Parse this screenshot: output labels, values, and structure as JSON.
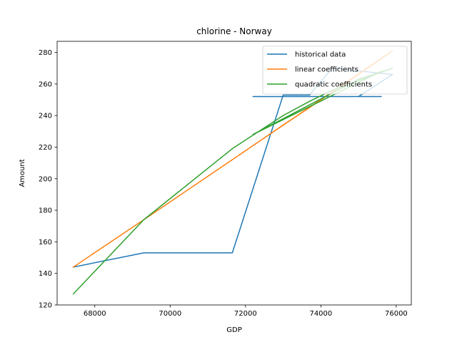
{
  "chart_data": {
    "type": "line",
    "title": "chlorine - Norway",
    "xlabel": "GDP",
    "ylabel": "Amount",
    "xlim": [
      67000,
      76400
    ],
    "ylim": [
      120,
      287
    ],
    "xticks": [
      68000,
      70000,
      72000,
      74000,
      76000
    ],
    "yticks": [
      120,
      140,
      160,
      180,
      200,
      220,
      240,
      260,
      280
    ],
    "legend_position": "top-right",
    "grid": false,
    "series": [
      {
        "name": "historical data",
        "color": "#1f77b4",
        "points": [
          [
            67430,
            144
          ],
          [
            69300,
            153
          ],
          [
            71650,
            153
          ],
          [
            73000,
            253
          ],
          [
            73700,
            253
          ],
          [
            74300,
            270
          ],
          [
            75900,
            266
          ],
          [
            75000,
            252
          ],
          [
            72200,
            252
          ],
          [
            75600,
            252
          ]
        ]
      },
      {
        "name": "linear coefficients",
        "color": "#ff7f0e",
        "points": [
          [
            67430,
            144
          ],
          [
            69300,
            174
          ],
          [
            71650,
            212
          ],
          [
            73000,
            234
          ],
          [
            73700,
            245
          ],
          [
            74300,
            255
          ],
          [
            75900,
            281
          ],
          [
            75000,
            266
          ],
          [
            72200,
            221
          ],
          [
            75600,
            276
          ]
        ]
      },
      {
        "name": "quadratic coefficients",
        "color": "#2ca02c",
        "points": [
          [
            67430,
            127
          ],
          [
            69300,
            174
          ],
          [
            71650,
            219
          ],
          [
            73000,
            240
          ],
          [
            73700,
            249
          ],
          [
            74300,
            256
          ],
          [
            75900,
            270
          ],
          [
            75000,
            263
          ],
          [
            72200,
            228
          ],
          [
            75600,
            268
          ]
        ]
      }
    ]
  }
}
